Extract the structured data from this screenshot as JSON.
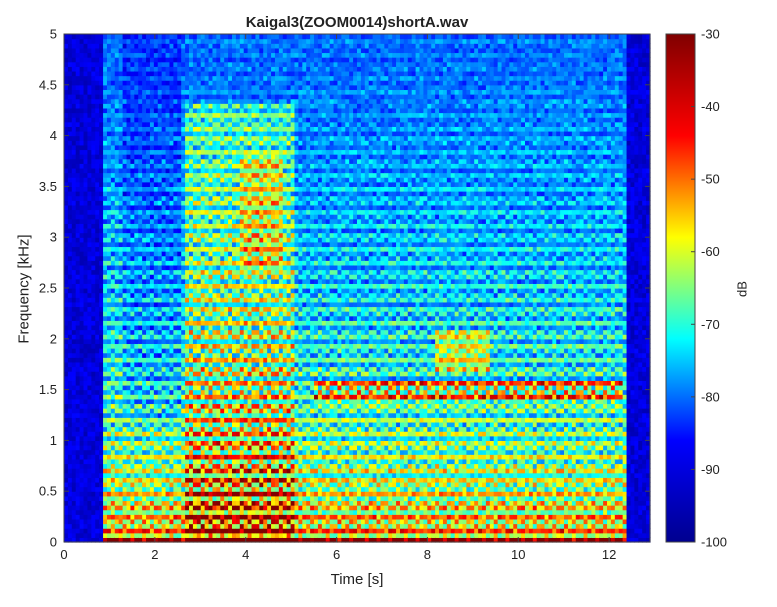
{
  "chart_data": {
    "type": "heatmap",
    "title": "Kaigal3(ZOOM0014)shortA.wav",
    "xlabel": "Time [s]",
    "ylabel": "Frequency [kHz]",
    "xlim": [
      0,
      12.9
    ],
    "ylim": [
      0,
      5
    ],
    "x_ticks": [
      0,
      2,
      4,
      6,
      8,
      10,
      12
    ],
    "y_ticks": [
      0,
      0.5,
      1,
      1.5,
      2,
      2.5,
      3,
      3.5,
      4,
      4.5,
      5
    ],
    "colorbar": {
      "label": "dB",
      "colormap": "jet",
      "range": [
        -100,
        -30
      ],
      "ticks": [
        -30,
        -40,
        -50,
        -60,
        -70,
        -80,
        -90,
        -100
      ]
    },
    "colormap_colors": [
      "#00008f",
      "#0000ff",
      "#00ffff",
      "#ffff00",
      "#ff0000",
      "#800000"
    ],
    "grid": false,
    "features": {
      "sound_onset_s": 0.9,
      "sound_offset_s": 12.35,
      "harmonic_spacing_khz": 0.12,
      "strong_band_khz": [
        1.35,
        1.6
      ],
      "strong_band_time_s": [
        5.5,
        12.3
      ],
      "formant_rise_time_s": [
        8.2,
        9.4
      ],
      "formant_rise_khz": [
        1.7,
        2.1
      ]
    }
  }
}
